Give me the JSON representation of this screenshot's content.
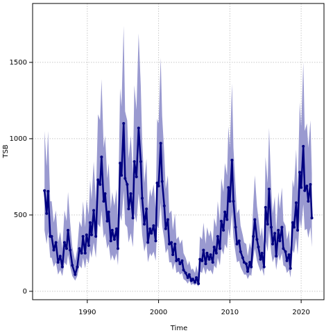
{
  "chart_data": {
    "type": "line",
    "x_label": "Time",
    "y_label": "TSB",
    "color": "#000080",
    "band_color": "#9a9ad0",
    "grid": true,
    "xlim": [
      1982.33,
      2023.2
    ],
    "ylim": [
      -55,
      1886
    ],
    "xticks": [
      1990,
      2000,
      2010,
      2020
    ],
    "yticks": [
      0,
      500,
      1000,
      1500
    ],
    "x": [
      1984.0,
      1984.3,
      1984.5,
      1984.8,
      1985.0,
      1985.3,
      1985.6,
      1985.9,
      1986.2,
      1986.5,
      1986.8,
      1987.1,
      1987.3,
      1987.6,
      1987.9,
      1988.3,
      1988.6,
      1988.9,
      1989.2,
      1989.4,
      1989.7,
      1989.9,
      1990.2,
      1990.4,
      1990.6,
      1990.9,
      1991.2,
      1991.5,
      1991.8,
      1992.0,
      1992.3,
      1992.5,
      1992.8,
      1993.0,
      1993.3,
      1993.5,
      1993.8,
      1994.1,
      1994.3,
      1994.6,
      1994.8,
      1995.1,
      1995.3,
      1995.6,
      1995.8,
      1996.1,
      1996.4,
      1996.6,
      1996.9,
      1997.2,
      1997.5,
      1997.7,
      1998.0,
      1998.3,
      1998.5,
      1998.8,
      1999.0,
      1999.3,
      1999.6,
      1999.8,
      2000.0,
      2000.3,
      2000.5,
      2000.8,
      2001.0,
      2001.3,
      2001.5,
      2001.8,
      2002.0,
      2002.3,
      2002.5,
      2002.8,
      2003.0,
      2003.3,
      2003.5,
      2003.8,
      2004.1,
      2004.3,
      2004.6,
      2004.8,
      2005.1,
      2005.3,
      2005.6,
      2005.8,
      2006.1,
      2006.3,
      2006.6,
      2006.8,
      2007.1,
      2007.3,
      2007.6,
      2007.8,
      2008.1,
      2008.3,
      2008.6,
      2008.8,
      2009.1,
      2009.3,
      2009.6,
      2009.8,
      2010.0,
      2010.3,
      2010.5,
      2010.8,
      2011.0,
      2011.3,
      2011.5,
      2011.8,
      2012.0,
      2012.3,
      2012.5,
      2012.8,
      2013.0,
      2013.3,
      2013.5,
      2013.8,
      2014.0,
      2014.3,
      2014.5,
      2014.8,
      2015.0,
      2015.3,
      2015.5,
      2015.8,
      2016.0,
      2016.3,
      2016.5,
      2016.8,
      2017.0,
      2017.3,
      2017.5,
      2017.8,
      2018.0,
      2018.3,
      2018.5,
      2018.8,
      2019.0,
      2019.3,
      2019.5,
      2019.8,
      2020.0,
      2020.3,
      2020.5,
      2020.8,
      2021.0,
      2021.3,
      2021.5
    ],
    "values": [
      660,
      510,
      655,
      360,
      360,
      270,
      320,
      190,
      230,
      160,
      320,
      280,
      400,
      270,
      170,
      110,
      160,
      280,
      250,
      360,
      250,
      370,
      300,
      450,
      370,
      530,
      360,
      730,
      700,
      880,
      590,
      640,
      460,
      520,
      330,
      400,
      340,
      410,
      280,
      840,
      760,
      1100,
      740,
      700,
      540,
      640,
      480,
      850,
      750,
      1070,
      850,
      610,
      440,
      540,
      320,
      410,
      380,
      430,
      330,
      710,
      690,
      970,
      720,
      560,
      410,
      470,
      310,
      320,
      240,
      310,
      200,
      210,
      180,
      200,
      140,
      120,
      90,
      110,
      70,
      80,
      60,
      90,
      50,
      210,
      200,
      270,
      180,
      250,
      210,
      240,
      190,
      290,
      250,
      360,
      280,
      460,
      400,
      520,
      470,
      680,
      590,
      860,
      590,
      420,
      310,
      330,
      260,
      220,
      190,
      180,
      130,
      190,
      160,
      360,
      470,
      340,
      290,
      210,
      250,
      160,
      550,
      440,
      670,
      420,
      310,
      380,
      230,
      400,
      330,
      420,
      280,
      260,
      200,
      240,
      150,
      450,
      420,
      580,
      400,
      780,
      680,
      950,
      660,
      690,
      590,
      700,
      480
    ],
    "lower": [
      400,
      310,
      390,
      220,
      220,
      160,
      190,
      110,
      140,
      100,
      190,
      170,
      240,
      160,
      100,
      70,
      100,
      170,
      150,
      220,
      150,
      220,
      180,
      270,
      220,
      320,
      220,
      440,
      420,
      530,
      350,
      380,
      280,
      310,
      200,
      240,
      200,
      250,
      170,
      500,
      460,
      660,
      440,
      420,
      320,
      380,
      290,
      510,
      450,
      640,
      510,
      370,
      260,
      320,
      190,
      250,
      230,
      260,
      200,
      430,
      410,
      580,
      430,
      340,
      250,
      280,
      190,
      190,
      140,
      190,
      120,
      130,
      110,
      120,
      80,
      70,
      50,
      70,
      40,
      50,
      40,
      50,
      30,
      130,
      120,
      160,
      110,
      150,
      130,
      140,
      110,
      170,
      150,
      220,
      170,
      280,
      240,
      310,
      280,
      410,
      350,
      520,
      350,
      250,
      190,
      200,
      160,
      130,
      110,
      110,
      80,
      110,
      100,
      220,
      280,
      200,
      170,
      130,
      150,
      100,
      330,
      260,
      400,
      250,
      190,
      230,
      140,
      240,
      200,
      250,
      170,
      160,
      120,
      140,
      90,
      270,
      250,
      350,
      240,
      470,
      410,
      570,
      400,
      410,
      350,
      420,
      290
    ],
    "upper": [
      1050,
      820,
      1050,
      590,
      590,
      450,
      530,
      320,
      390,
      280,
      530,
      460,
      650,
      450,
      290,
      200,
      280,
      460,
      420,
      590,
      420,
      600,
      500,
      730,
      600,
      850,
      590,
      1160,
      1120,
      1390,
      940,
      1020,
      740,
      840,
      540,
      650,
      560,
      670,
      460,
      1330,
      1210,
      1740,
      1180,
      1120,
      870,
      1020,
      770,
      1350,
      1190,
      1690,
      1350,
      980,
      710,
      870,
      530,
      670,
      620,
      700,
      540,
      1130,
      1100,
      1530,
      1150,
      900,
      670,
      760,
      510,
      530,
      400,
      510,
      340,
      360,
      310,
      340,
      250,
      220,
      170,
      200,
      140,
      150,
      120,
      170,
      110,
      360,
      340,
      450,
      310,
      420,
      360,
      400,
      320,
      480,
      420,
      590,
      460,
      740,
      650,
      840,
      760,
      1080,
      940,
      1360,
      940,
      680,
      510,
      540,
      430,
      370,
      320,
      310,
      230,
      320,
      280,
      590,
      760,
      560,
      480,
      360,
      420,
      280,
      880,
      710,
      1070,
      680,
      510,
      620,
      390,
      650,
      540,
      680,
      460,
      430,
      340,
      400,
      260,
      730,
      680,
      930,
      650,
      1240,
      1080,
      1500,
      1050,
      1100,
      940,
      1120,
      770
    ]
  }
}
